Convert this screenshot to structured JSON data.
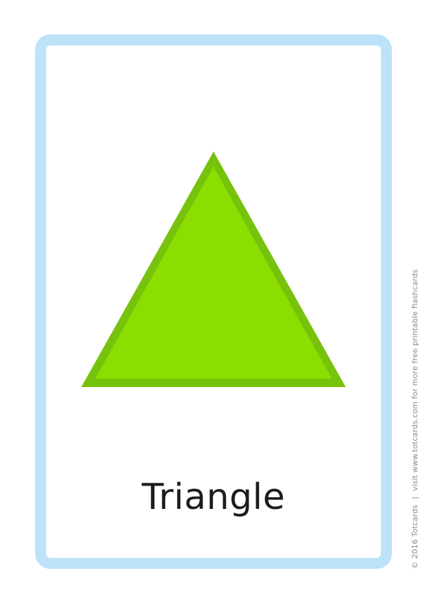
{
  "card": {
    "word": "Triangle",
    "shape_icon": "triangle",
    "colors": {
      "border": "#bde3f8",
      "shape_fill": "#8bde00",
      "shape_outline": "#77c20c"
    }
  },
  "footer": {
    "copyright": "© 2016 Totcards",
    "separator": "|",
    "link_text": "visit www.totcards.com for more free printable flashcards"
  }
}
